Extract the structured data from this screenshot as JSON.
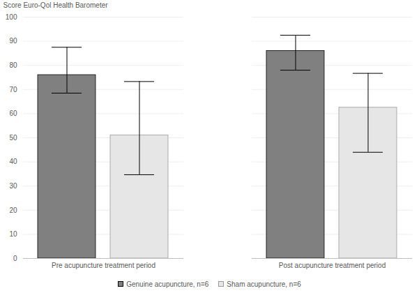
{
  "chart_data": {
    "type": "bar",
    "y_label": "Score Euro-Qol Health Barometer",
    "categories": [
      "Pre acupuncture treatment period",
      "Post acupuncture treatment period"
    ],
    "series": [
      {
        "name": "Genuine acupuncture, n=6",
        "color": "#808080",
        "values": [
          76,
          86
        ],
        "error_low": [
          68.5,
          78
        ],
        "error_high": [
          87.5,
          92.5
        ]
      },
      {
        "name": "Sham acupuncture, n=6",
        "color": "#e6e6e6",
        "values": [
          51,
          62.5
        ],
        "error_low": [
          34.7,
          44
        ],
        "error_high": [
          73.3,
          76.7
        ]
      }
    ],
    "ylim": [
      0,
      100
    ],
    "yticks": [
      0,
      10,
      20,
      30,
      40,
      50,
      60,
      70,
      80,
      90,
      100
    ],
    "grid": true,
    "legend": "bottom"
  }
}
